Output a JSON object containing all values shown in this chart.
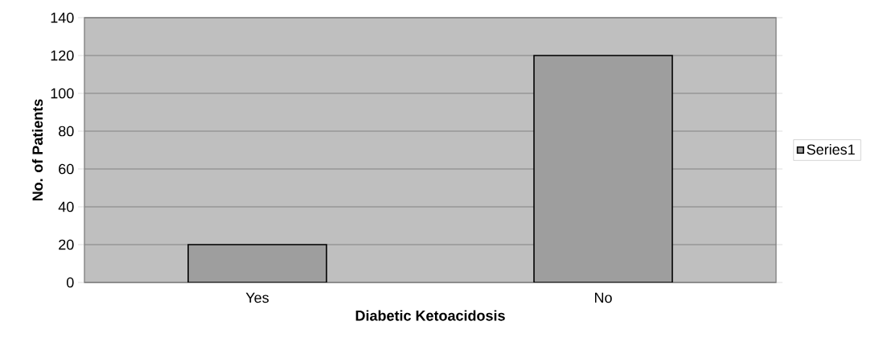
{
  "chart_data": {
    "type": "bar",
    "xlabel": "Diabetic Ketoacidosis",
    "ylabel": "No. of Patients",
    "categories": [
      "Yes",
      "No"
    ],
    "series": [
      {
        "name": "Series1",
        "color": "#9e9e9e",
        "values": [
          20,
          120
        ]
      }
    ],
    "ylim": [
      0,
      140
    ],
    "yticks": [
      0,
      20,
      40,
      60,
      80,
      100,
      120,
      140
    ],
    "grid": "y",
    "legend": "right"
  }
}
